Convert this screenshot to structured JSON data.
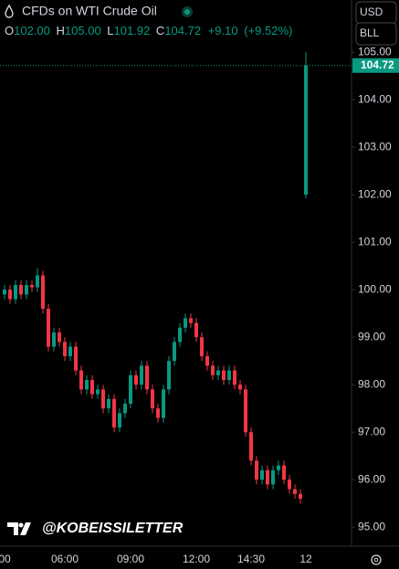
{
  "chart_data": {
    "type": "candlestick",
    "title": "CFDs on WTI Crude Oil",
    "legend": {
      "open_label": "O",
      "open": "102.00",
      "high_label": "H",
      "high": "105.00",
      "low_label": "L",
      "low": "101.92",
      "close_label": "C",
      "close": "104.72",
      "change": "+9.10",
      "change_percent": "(+9.52%)"
    },
    "currency_button": "USD",
    "unit_button": "BLL",
    "last_price_label": "104.72",
    "watermark": "@KOBEISSILETTER",
    "up_color": "#089981",
    "down_color": "#f23645",
    "categories": [
      "00",
      null,
      null,
      null,
      null,
      null,
      null,
      null,
      null,
      null,
      null,
      "06:00",
      null,
      null,
      null,
      null,
      null,
      null,
      null,
      null,
      null,
      null,
      null,
      "09:00",
      null,
      null,
      null,
      null,
      null,
      null,
      null,
      null,
      null,
      null,
      null,
      "12:00",
      null,
      null,
      null,
      null,
      null,
      null,
      null,
      null,
      null,
      "14:30",
      null,
      null,
      null,
      null,
      null,
      null,
      null,
      null,
      null,
      "12"
    ],
    "open": [
      99.9,
      100.0,
      99.8,
      100.1,
      99.9,
      100.1,
      100.05,
      100.3,
      99.6,
      98.8,
      99.1,
      98.9,
      98.6,
      98.8,
      98.3,
      97.9,
      98.1,
      97.8,
      97.9,
      97.5,
      97.7,
      97.1,
      97.4,
      97.6,
      98.2,
      98.0,
      98.4,
      97.9,
      97.5,
      97.3,
      97.9,
      98.5,
      98.9,
      99.2,
      99.4,
      99.3,
      99.0,
      98.6,
      98.4,
      98.2,
      98.3,
      98.1,
      98.3,
      98.0,
      97.9,
      97.0,
      96.4,
      96.0,
      96.2,
      95.9,
      96.2,
      96.3,
      96.0,
      95.8,
      95.7,
      102.0
    ],
    "high": [
      100.1,
      100.1,
      100.2,
      100.2,
      100.2,
      100.2,
      100.45,
      100.4,
      99.7,
      99.2,
      99.2,
      99.0,
      98.9,
      98.9,
      98.4,
      98.2,
      98.2,
      98.0,
      98.0,
      97.8,
      97.8,
      97.5,
      97.7,
      98.3,
      98.3,
      98.5,
      98.5,
      98.0,
      97.6,
      98.0,
      98.6,
      99.0,
      99.3,
      99.5,
      99.5,
      99.4,
      99.1,
      98.7,
      98.5,
      98.4,
      98.4,
      98.4,
      98.4,
      98.1,
      98.0,
      97.1,
      96.5,
      96.3,
      96.3,
      96.3,
      96.4,
      96.4,
      96.1,
      95.9,
      95.8,
      105.0
    ],
    "low": [
      99.8,
      99.7,
      99.7,
      99.8,
      99.8,
      99.95,
      99.95,
      99.5,
      98.7,
      98.7,
      98.8,
      98.5,
      98.5,
      98.2,
      97.8,
      97.8,
      97.7,
      97.7,
      97.4,
      97.4,
      97.0,
      97.0,
      97.3,
      97.5,
      97.9,
      97.9,
      97.8,
      97.4,
      97.2,
      97.2,
      97.8,
      98.4,
      98.8,
      99.1,
      99.2,
      98.9,
      98.5,
      98.3,
      98.1,
      98.1,
      98.0,
      98.0,
      97.9,
      97.8,
      96.9,
      96.3,
      95.9,
      95.9,
      95.8,
      95.8,
      96.1,
      95.9,
      95.7,
      95.6,
      95.5,
      101.92
    ],
    "close": [
      100.0,
      99.8,
      100.1,
      99.9,
      100.1,
      100.05,
      100.3,
      99.6,
      98.8,
      99.1,
      98.9,
      98.6,
      98.8,
      98.3,
      97.9,
      98.1,
      97.8,
      97.9,
      97.5,
      97.7,
      97.1,
      97.4,
      97.6,
      98.2,
      98.0,
      98.4,
      97.9,
      97.5,
      97.3,
      97.9,
      98.5,
      98.9,
      99.2,
      99.4,
      99.3,
      99.0,
      98.6,
      98.4,
      98.2,
      98.3,
      98.1,
      98.3,
      98.0,
      97.9,
      97.0,
      96.4,
      96.0,
      96.2,
      95.9,
      96.2,
      96.3,
      96.0,
      95.8,
      95.7,
      95.6,
      104.72
    ],
    "ylim": [
      94.6,
      106.1
    ],
    "yticks": [
      {
        "value": 95,
        "label": "95.00"
      },
      {
        "value": 96,
        "label": "96.00"
      },
      {
        "value": 97,
        "label": "97.00"
      },
      {
        "value": 98,
        "label": "98.00"
      },
      {
        "value": 99,
        "label": "99.00"
      },
      {
        "value": 100,
        "label": "100.00"
      },
      {
        "value": 101,
        "label": "101.00"
      },
      {
        "value": 102,
        "label": "102.00"
      },
      {
        "value": 103,
        "label": "103.00"
      },
      {
        "value": 104,
        "label": "104.00"
      },
      {
        "value": 105,
        "label": "105.00"
      }
    ],
    "last_price": 104.72
  }
}
